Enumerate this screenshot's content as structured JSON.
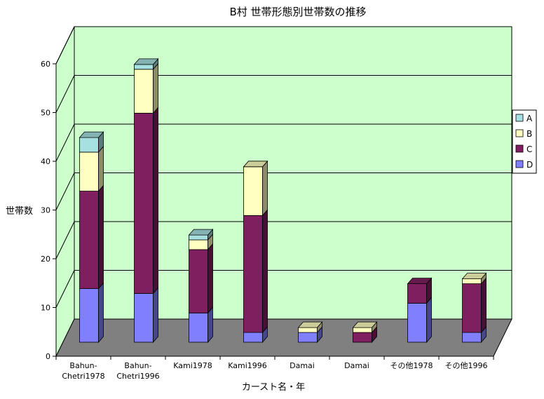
{
  "chart_data": {
    "type": "bar",
    "stacked": true,
    "three_d": true,
    "title": "B村 世帯形態別世帯数の推移",
    "xlabel": "カースト名・年",
    "ylabel": "世帯数",
    "ylim": [
      0,
      60
    ],
    "yticks": [
      0,
      10,
      20,
      30,
      40,
      50,
      60
    ],
    "grid": true,
    "legend_position": "right",
    "categories": [
      [
        "Bahun-",
        "Chetri1978"
      ],
      [
        "Bahun-",
        "Chetri1996"
      ],
      [
        "Kami1978"
      ],
      [
        "Kami1996"
      ],
      [
        "Damai"
      ],
      [
        "Damai"
      ],
      [
        "その他1978"
      ],
      [
        "その他1996"
      ]
    ],
    "series": [
      {
        "name": "D",
        "color": "#8080ff",
        "values": [
          11,
          10,
          6,
          2,
          2,
          0,
          8,
          2
        ]
      },
      {
        "name": "C",
        "color": "#7f1f5f",
        "values": [
          20,
          37,
          13,
          24,
          0,
          2,
          4,
          10
        ]
      },
      {
        "name": "B",
        "color": "#ffffc0",
        "values": [
          8,
          9,
          2,
          10,
          1,
          1,
          0,
          1
        ]
      },
      {
        "name": "A",
        "color": "#a6e0e0",
        "values": [
          3,
          1,
          1,
          0,
          0,
          0,
          0,
          0
        ]
      }
    ],
    "legend_order": [
      "A",
      "B",
      "C",
      "D"
    ],
    "colors": {
      "wall": "#ccffcc",
      "floor": "#808080",
      "border": "#000000"
    }
  }
}
